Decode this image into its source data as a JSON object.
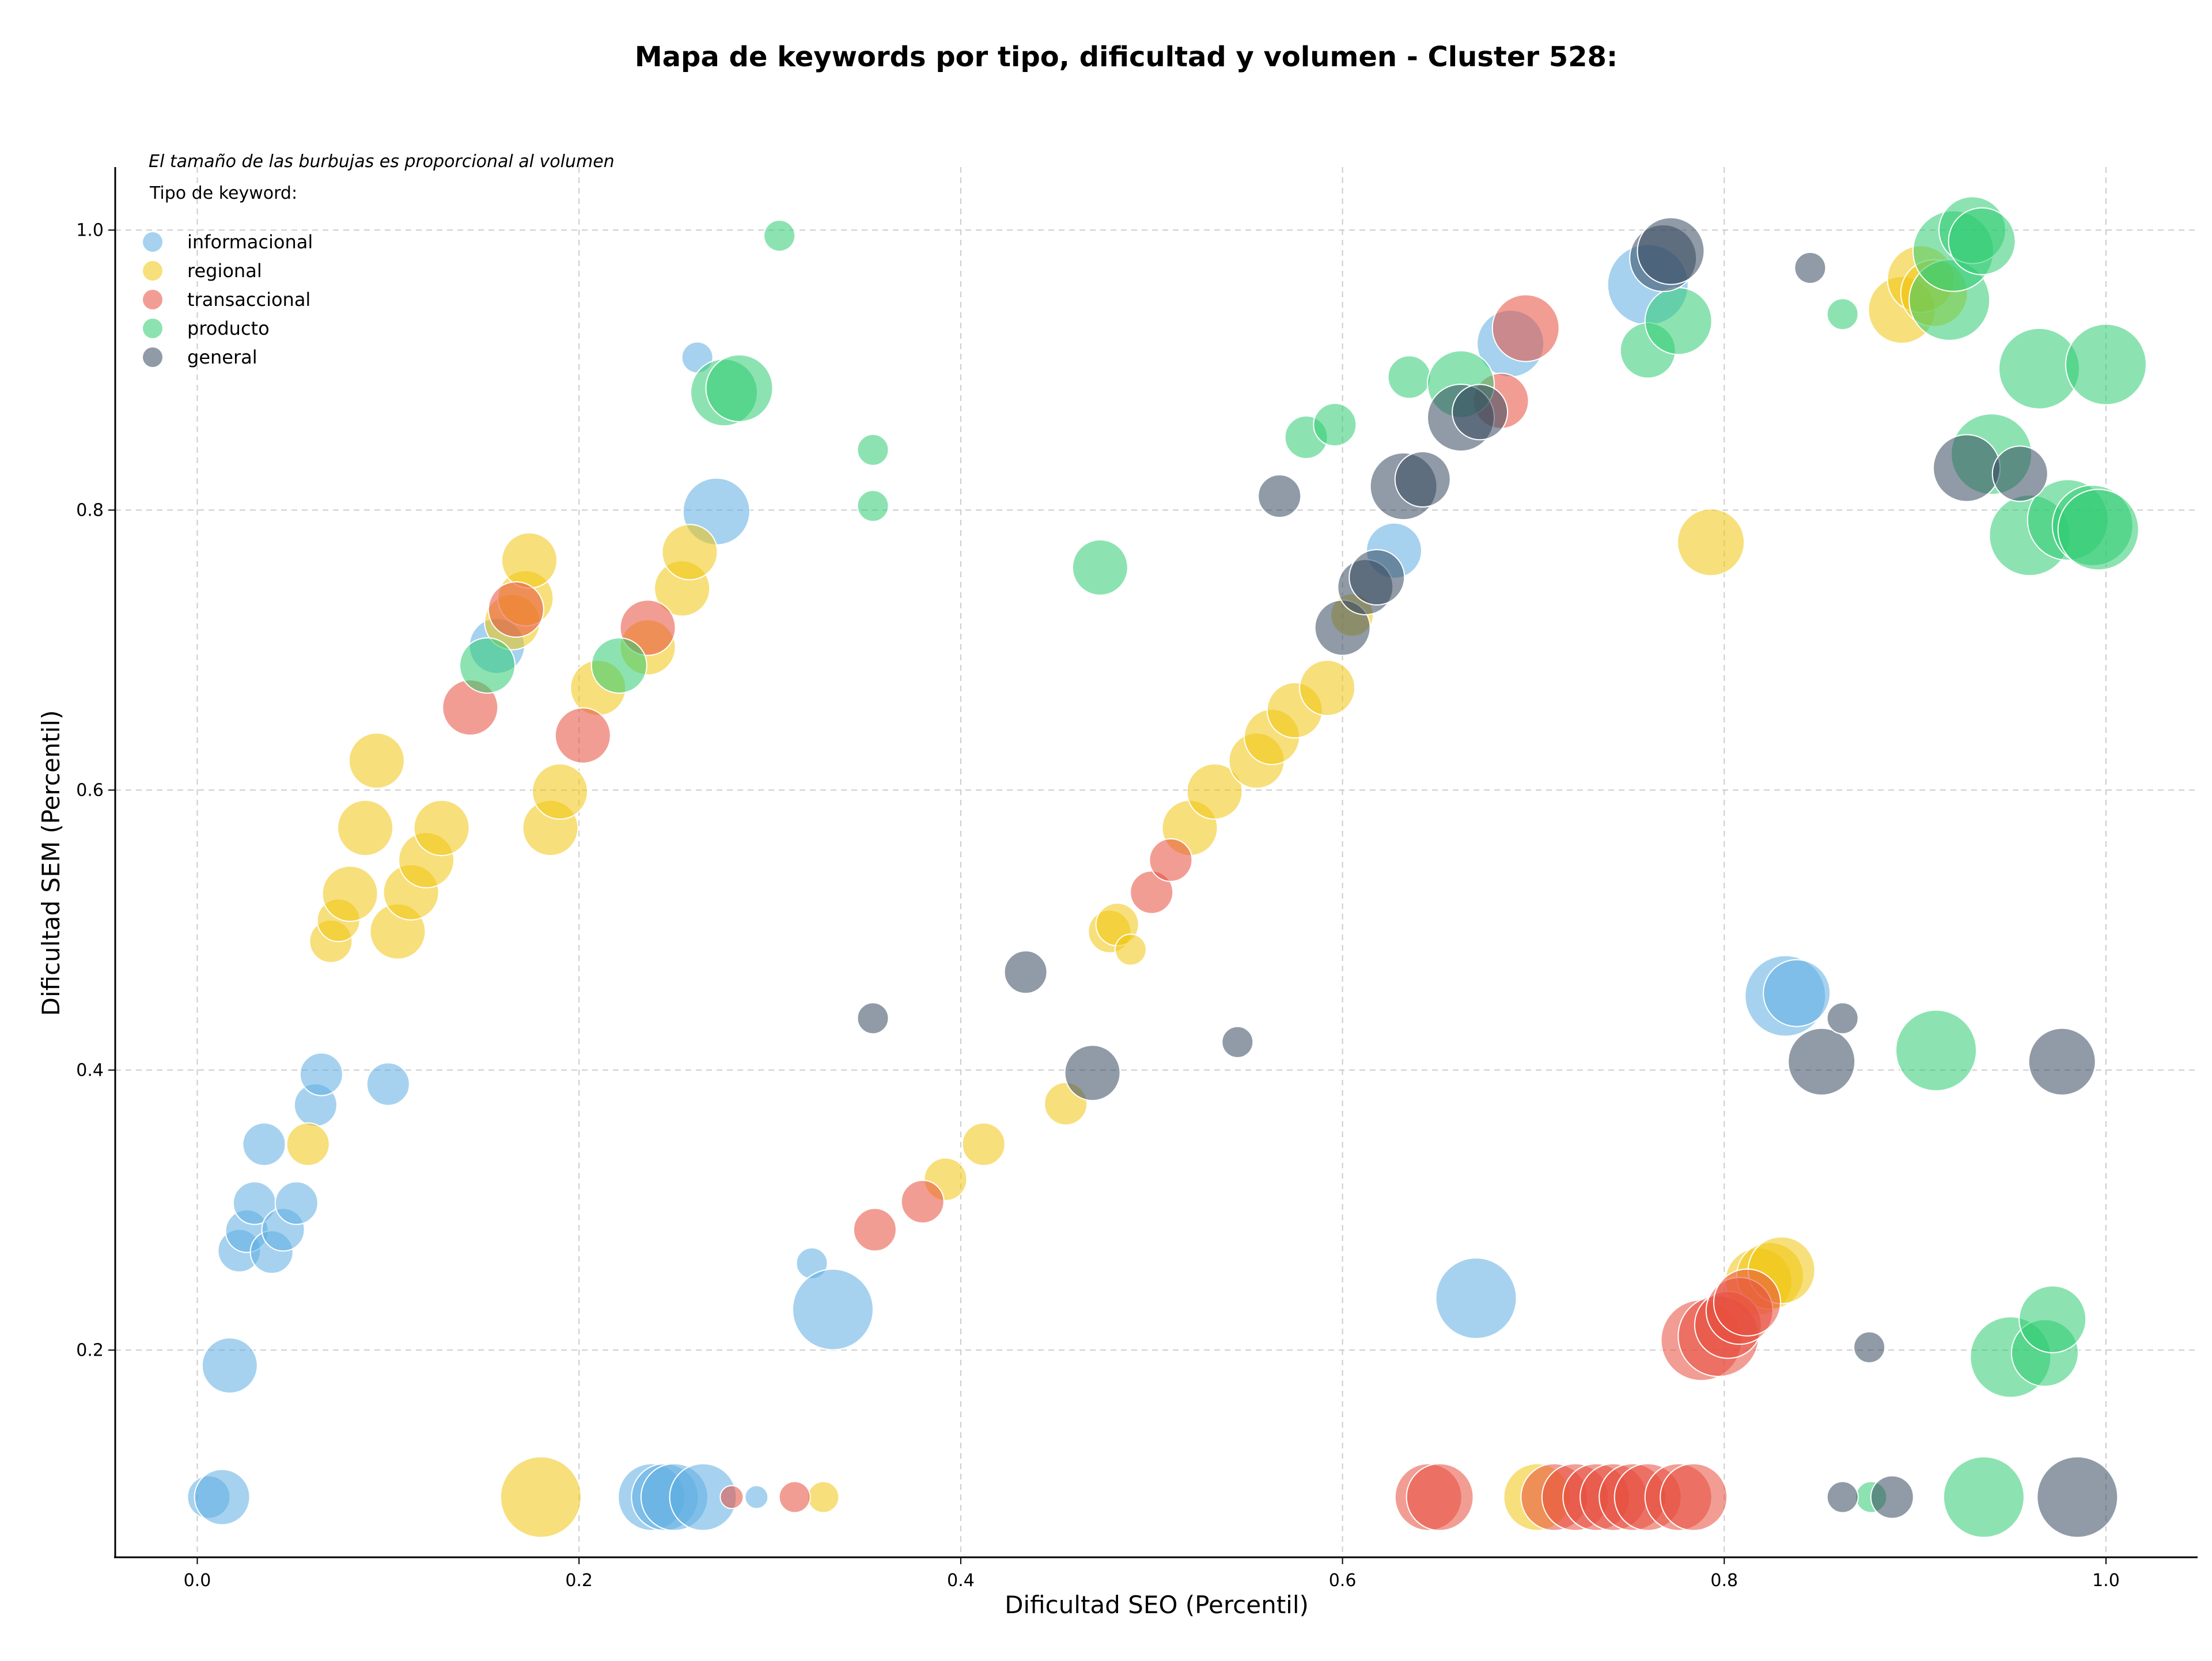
{
  "chart_data": {
    "type": "scatter",
    "title": "Mapa de keywords por tipo, dificultad y volumen - Cluster 528:",
    "xlabel": "Dificultad SEO (Percentil)",
    "ylabel": "Dificultad SEM (Percentil)",
    "annotation": "El tamaño de las burbujas es proporcional al volumen",
    "legend_title": "Tipo de keyword:",
    "legend_position": "top-left",
    "grid": true,
    "xlim": [
      -0.043,
      1.048
    ],
    "ylim": [
      0.052,
      1.045
    ],
    "xticks": [
      "0.0",
      "0.2",
      "0.4",
      "0.6",
      "0.8",
      "1.0"
    ],
    "yticks": [
      "0.2",
      "0.4",
      "0.6",
      "0.8",
      "1.0"
    ],
    "series": [
      {
        "name": "informacional",
        "color": "#5dade2",
        "points": [
          [
            0.006,
            0.095,
            "m"
          ],
          [
            0.013,
            0.095,
            "L"
          ],
          [
            0.017,
            0.189,
            "L"
          ],
          [
            0.022,
            0.271,
            "m"
          ],
          [
            0.026,
            0.285,
            "m"
          ],
          [
            0.03,
            0.305,
            "m"
          ],
          [
            0.035,
            0.347,
            "m"
          ],
          [
            0.039,
            0.27,
            "m"
          ],
          [
            0.045,
            0.286,
            "m"
          ],
          [
            0.052,
            0.305,
            "m"
          ],
          [
            0.062,
            0.375,
            "m"
          ],
          [
            0.065,
            0.397,
            "m"
          ],
          [
            0.1,
            0.39,
            "m"
          ],
          [
            0.157,
            0.703,
            "L"
          ],
          [
            0.238,
            0.095,
            "XL"
          ],
          [
            0.245,
            0.095,
            "XL"
          ],
          [
            0.25,
            0.095,
            "XL"
          ],
          [
            0.262,
            0.909,
            "s"
          ],
          [
            0.265,
            0.095,
            "XL"
          ],
          [
            0.272,
            0.799,
            "XL"
          ],
          [
            0.293,
            0.095,
            "xs"
          ],
          [
            0.322,
            0.262,
            "s"
          ],
          [
            0.333,
            0.229,
            "XXL"
          ],
          [
            0.67,
            0.237,
            "XXL"
          ],
          [
            0.627,
            0.771,
            "L"
          ],
          [
            0.688,
            0.919,
            "XL"
          ],
          [
            0.76,
            0.961,
            "XXL"
          ],
          [
            0.832,
            0.453,
            "XXL"
          ],
          [
            0.838,
            0.455,
            "XL"
          ]
        ]
      },
      {
        "name": "regional",
        "color": "#f1c40f",
        "points": [
          [
            0.058,
            0.347,
            "m"
          ],
          [
            0.07,
            0.492,
            "m"
          ],
          [
            0.074,
            0.507,
            "m"
          ],
          [
            0.08,
            0.526,
            "L"
          ],
          [
            0.088,
            0.573,
            "L"
          ],
          [
            0.094,
            0.621,
            "L"
          ],
          [
            0.105,
            0.499,
            "L"
          ],
          [
            0.112,
            0.527,
            "L"
          ],
          [
            0.12,
            0.55,
            "L"
          ],
          [
            0.128,
            0.573,
            "L"
          ],
          [
            0.165,
            0.72,
            "L"
          ],
          [
            0.172,
            0.737,
            "L"
          ],
          [
            0.174,
            0.764,
            "L"
          ],
          [
            0.18,
            0.095,
            "XXL"
          ],
          [
            0.185,
            0.573,
            "L"
          ],
          [
            0.19,
            0.599,
            "L"
          ],
          [
            0.21,
            0.673,
            "L"
          ],
          [
            0.236,
            0.702,
            "L"
          ],
          [
            0.254,
            0.744,
            "L"
          ],
          [
            0.258,
            0.77,
            "L"
          ],
          [
            0.328,
            0.095,
            "s"
          ],
          [
            0.392,
            0.322,
            "m"
          ],
          [
            0.412,
            0.347,
            "m"
          ],
          [
            0.455,
            0.376,
            "m"
          ],
          [
            0.478,
            0.499,
            "m"
          ],
          [
            0.482,
            0.504,
            "m"
          ],
          [
            0.489,
            0.486,
            "s"
          ],
          [
            0.52,
            0.573,
            "L"
          ],
          [
            0.533,
            0.599,
            "L"
          ],
          [
            0.555,
            0.621,
            "L"
          ],
          [
            0.563,
            0.638,
            "L"
          ],
          [
            0.575,
            0.657,
            "L"
          ],
          [
            0.592,
            0.673,
            "L"
          ],
          [
            0.605,
            0.725,
            "m"
          ],
          [
            0.702,
            0.095,
            "XL"
          ],
          [
            0.793,
            0.777,
            "XL"
          ],
          [
            0.818,
            0.249,
            "XL"
          ],
          [
            0.824,
            0.253,
            "XL"
          ],
          [
            0.83,
            0.257,
            "XL"
          ],
          [
            0.893,
            0.943,
            "XL"
          ],
          [
            0.903,
            0.965,
            "XL"
          ],
          [
            0.91,
            0.955,
            "XL"
          ]
        ]
      },
      {
        "name": "transaccional",
        "color": "#e74c3c",
        "points": [
          [
            0.143,
            0.659,
            "L"
          ],
          [
            0.167,
            0.729,
            "L"
          ],
          [
            0.202,
            0.639,
            "L"
          ],
          [
            0.236,
            0.716,
            "L"
          ],
          [
            0.28,
            0.095,
            "xs"
          ],
          [
            0.313,
            0.095,
            "s"
          ],
          [
            0.355,
            0.286,
            "m"
          ],
          [
            0.38,
            0.306,
            "m"
          ],
          [
            0.5,
            0.527,
            "m"
          ],
          [
            0.51,
            0.55,
            "m"
          ],
          [
            0.645,
            0.095,
            "XL"
          ],
          [
            0.651,
            0.095,
            "XL"
          ],
          [
            0.683,
            0.878,
            "L"
          ],
          [
            0.696,
            0.93,
            "XL"
          ],
          [
            0.711,
            0.095,
            "XL"
          ],
          [
            0.722,
            0.095,
            "XL"
          ],
          [
            0.733,
            0.095,
            "XL"
          ],
          [
            0.742,
            0.095,
            "XL"
          ],
          [
            0.752,
            0.095,
            "XL"
          ],
          [
            0.76,
            0.095,
            "XL"
          ],
          [
            0.776,
            0.095,
            "XL"
          ],
          [
            0.784,
            0.095,
            "XL"
          ],
          [
            0.788,
            0.207,
            "XXL"
          ],
          [
            0.797,
            0.21,
            "XXL"
          ],
          [
            0.802,
            0.218,
            "XL"
          ],
          [
            0.808,
            0.228,
            "XL"
          ],
          [
            0.812,
            0.234,
            "XL"
          ]
        ]
      },
      {
        "name": "producto",
        "color": "#2ecc71",
        "points": [
          [
            0.152,
            0.689,
            "L"
          ],
          [
            0.221,
            0.689,
            "L"
          ],
          [
            0.276,
            0.884,
            "XL"
          ],
          [
            0.284,
            0.887,
            "XL"
          ],
          [
            0.305,
            0.996,
            "s"
          ],
          [
            0.354,
            0.843,
            "s"
          ],
          [
            0.354,
            0.803,
            "s"
          ],
          [
            0.473,
            0.759,
            "L"
          ],
          [
            0.581,
            0.852,
            "m"
          ],
          [
            0.596,
            0.861,
            "m"
          ],
          [
            0.635,
            0.895,
            "m"
          ],
          [
            0.662,
            0.89,
            "XL"
          ],
          [
            0.76,
            0.914,
            "L"
          ],
          [
            0.776,
            0.935,
            "XL"
          ],
          [
            0.862,
            0.94,
            "s"
          ],
          [
            0.877,
            0.095,
            "s"
          ],
          [
            0.911,
            0.414,
            "XXL"
          ],
          [
            0.918,
            0.95,
            "XXL"
          ],
          [
            0.92,
            0.985,
            "XXL"
          ],
          [
            0.93,
            1.0,
            "XL"
          ],
          [
            0.935,
            0.992,
            "XL"
          ],
          [
            0.936,
            0.095,
            "XXL"
          ],
          [
            0.94,
            0.84,
            "XXL"
          ],
          [
            0.95,
            0.195,
            "XXL"
          ],
          [
            0.96,
            0.782,
            "XXL"
          ],
          [
            0.965,
            0.901,
            "XXL"
          ],
          [
            0.968,
            0.198,
            "XL"
          ],
          [
            0.972,
            0.222,
            "XL"
          ],
          [
            0.98,
            0.793,
            "XXL"
          ],
          [
            0.993,
            0.789,
            "XXL"
          ],
          [
            0.996,
            0.786,
            "XXL"
          ],
          [
            1.0,
            0.904,
            "XXL"
          ]
        ]
      },
      {
        "name": "general",
        "color": "#34495e",
        "points": [
          [
            0.354,
            0.437,
            "s"
          ],
          [
            0.434,
            0.47,
            "m"
          ],
          [
            0.469,
            0.398,
            "L"
          ],
          [
            0.545,
            0.42,
            "s"
          ],
          [
            0.567,
            0.81,
            "m"
          ],
          [
            0.6,
            0.716,
            "L"
          ],
          [
            0.612,
            0.745,
            "L"
          ],
          [
            0.618,
            0.752,
            "L"
          ],
          [
            0.632,
            0.817,
            "XL"
          ],
          [
            0.642,
            0.822,
            "L"
          ],
          [
            0.662,
            0.866,
            "XL"
          ],
          [
            0.672,
            0.87,
            "L"
          ],
          [
            0.768,
            0.98,
            "XL"
          ],
          [
            0.772,
            0.985,
            "XL"
          ],
          [
            0.845,
            0.973,
            "s"
          ],
          [
            0.851,
            0.406,
            "XL"
          ],
          [
            0.862,
            0.437,
            "s"
          ],
          [
            0.862,
            0.095,
            "s"
          ],
          [
            0.876,
            0.202,
            "s"
          ],
          [
            0.888,
            0.095,
            "m"
          ],
          [
            0.927,
            0.83,
            "XL"
          ],
          [
            0.955,
            0.826,
            "L"
          ],
          [
            0.977,
            0.406,
            "XL"
          ],
          [
            0.985,
            0.095,
            "XXL"
          ]
        ]
      }
    ]
  }
}
